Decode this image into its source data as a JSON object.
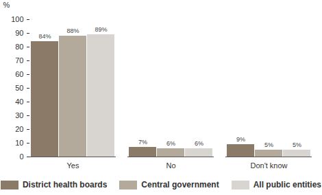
{
  "chart_data": {
    "type": "bar",
    "categories": [
      "Yes",
      "No",
      "Don't know"
    ],
    "series": [
      {
        "name": "District health boards",
        "color": "#8b7a68",
        "values": [
          84,
          7,
          9
        ],
        "value_labels": [
          "84%",
          "7%",
          "9%"
        ]
      },
      {
        "name": "Central government",
        "color": "#b4aa9c",
        "values": [
          88,
          6,
          5
        ],
        "value_labels": [
          "88%",
          "6%",
          "5%"
        ]
      },
      {
        "name": "All public entities",
        "color": "#d8d5d0",
        "values": [
          89,
          6,
          5
        ],
        "value_labels": [
          "89%",
          "6%",
          "5%"
        ]
      }
    ],
    "y_label": "%",
    "ylim": [
      0,
      100
    ],
    "yticks": [
      0,
      10,
      20,
      30,
      40,
      50,
      60,
      70,
      80,
      90,
      100
    ],
    "grid": false,
    "data_labels": true,
    "legend": "bottom"
  }
}
